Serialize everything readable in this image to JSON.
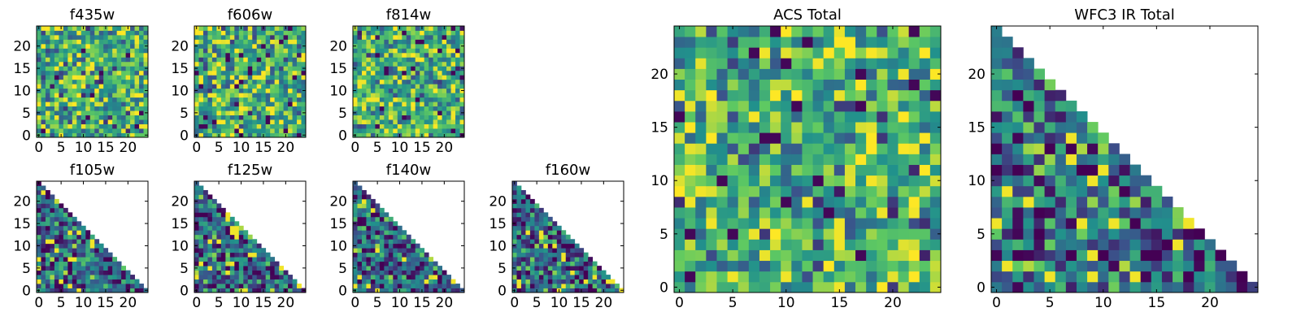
{
  "figure": {
    "colormap": [
      "#440154",
      "#3b528b",
      "#21918c",
      "#5ec962",
      "#fde725"
    ]
  },
  "chart_data": [
    {
      "type": "heatmap",
      "title": "f435w",
      "mask": "none",
      "seed": 11,
      "x": [
        0,
        24
      ],
      "y": [
        0,
        24
      ],
      "xticks": [
        "0",
        "5",
        "10",
        "15",
        "20"
      ],
      "yticks": [
        "0",
        "5",
        "10",
        "15",
        "20"
      ]
    },
    {
      "type": "heatmap",
      "title": "f606w",
      "mask": "none",
      "seed": 23,
      "x": [
        0,
        24
      ],
      "y": [
        0,
        24
      ],
      "xticks": [
        "0",
        "5",
        "10",
        "15",
        "20"
      ],
      "yticks": [
        "0",
        "5",
        "10",
        "15",
        "20"
      ]
    },
    {
      "type": "heatmap",
      "title": "f814w",
      "mask": "none",
      "seed": 37,
      "x": [
        0,
        24
      ],
      "y": [
        0,
        24
      ],
      "xticks": [
        "0",
        "5",
        "10",
        "15",
        "20"
      ],
      "yticks": [
        "0",
        "5",
        "10",
        "15",
        "20"
      ]
    },
    {
      "type": "heatmap",
      "title": "f105w",
      "mask": "upper-right-triangle",
      "seed": 41,
      "x": [
        0,
        24
      ],
      "y": [
        0,
        24
      ],
      "xticks": [
        "0",
        "5",
        "10",
        "15",
        "20"
      ],
      "yticks": [
        "0",
        "5",
        "10",
        "15",
        "20"
      ]
    },
    {
      "type": "heatmap",
      "title": "f125w",
      "mask": "upper-right-triangle",
      "seed": 53,
      "x": [
        0,
        24
      ],
      "y": [
        0,
        24
      ],
      "xticks": [
        "0",
        "5",
        "10",
        "15",
        "20"
      ],
      "yticks": [
        "0",
        "5",
        "10",
        "15",
        "20"
      ]
    },
    {
      "type": "heatmap",
      "title": "f140w",
      "mask": "upper-right-triangle",
      "seed": 67,
      "x": [
        0,
        24
      ],
      "y": [
        0,
        24
      ],
      "xticks": [
        "0",
        "5",
        "10",
        "15",
        "20"
      ],
      "yticks": [
        "0",
        "5",
        "10",
        "15",
        "20"
      ]
    },
    {
      "type": "heatmap",
      "title": "f160w",
      "mask": "upper-right-triangle",
      "seed": 79,
      "x": [
        0,
        24
      ],
      "y": [
        0,
        24
      ],
      "xticks": [
        "0",
        "5",
        "10",
        "15",
        "20"
      ],
      "yticks": [
        "0",
        "5",
        "10",
        "15",
        "20"
      ]
    },
    {
      "type": "heatmap",
      "title": "ACS Total",
      "mask": "none",
      "seed": 83,
      "x": [
        0,
        24
      ],
      "y": [
        0,
        24
      ],
      "xticks": [
        "0",
        "5",
        "10",
        "15",
        "20"
      ],
      "yticks": [
        "0",
        "5",
        "10",
        "15",
        "20"
      ]
    },
    {
      "type": "heatmap",
      "title": "WFC3 IR Total",
      "mask": "upper-right-triangle",
      "seed": 97,
      "x": [
        0,
        24
      ],
      "y": [
        0,
        24
      ],
      "xticks": [
        "0",
        "5",
        "10",
        "15",
        "20"
      ],
      "yticks": [
        "0",
        "5",
        "10",
        "15",
        "20"
      ]
    }
  ]
}
